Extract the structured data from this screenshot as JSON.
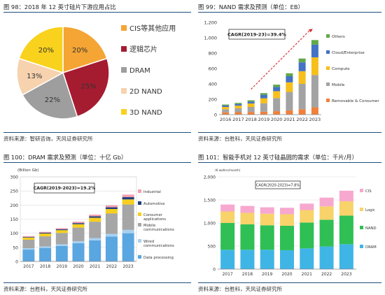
{
  "charts": [
    {
      "figure_title": "图 98：2018 年 12 英寸硅片下游应用占比",
      "source": "资料来源：智研咨询，天风证券研究所",
      "colors": [
        "#f4a534",
        "#a51c30",
        "#9e9e9e",
        "#f6d2ae",
        "#f8d21c"
      ],
      "chart_data": {
        "type": "pie",
        "categories": [
          "CIS等其他应用",
          "逻辑芯片",
          "DRAM",
          "2D NAND",
          "3D NAND"
        ],
        "values": [
          20,
          25,
          22,
          13,
          20
        ],
        "value_labels": [
          "20%",
          "25%",
          "22%",
          "13%",
          "20%"
        ],
        "legend_position": "right"
      }
    },
    {
      "figure_title": "图 99：NAND 需求及预测（单位：EB）",
      "source": "资料来源：台胜科，天风证券研究所",
      "colors": [
        "#f0803a",
        "#a3a3a3",
        "#f7bf1a",
        "#4472c4",
        "#62a84a"
      ],
      "chart_data": {
        "type": "bar",
        "stacked": true,
        "categories": [
          "2016",
          "2017",
          "2018",
          "2019",
          "2020",
          "2021",
          "2022",
          "2023"
        ],
        "ylim": [
          0,
          1200
        ],
        "yticks": [
          "0",
          "200",
          "400",
          "600",
          "800",
          "1,000",
          "1,200"
        ],
        "annotation": "CAGR(2019-23)=39.4%",
        "legend_position": "right",
        "series": [
          {
            "name": "Removable & Consumer",
            "values": [
              30,
              32,
              35,
              38,
              45,
              55,
              70,
              95
            ]
          },
          {
            "name": "Mobile",
            "values": [
              40,
              50,
              65,
              110,
              170,
              240,
              330,
              420
            ]
          },
          {
            "name": "Compute",
            "values": [
              30,
              35,
              45,
              65,
              90,
              125,
              165,
              230
            ]
          },
          {
            "name": "Cloud/Enterprise",
            "values": [
              20,
              22,
              25,
              45,
              55,
              80,
              115,
              165
            ]
          },
          {
            "name": "Others",
            "values": [
              12,
              14,
              17,
              22,
              30,
              38,
              50,
              60
            ]
          }
        ]
      }
    },
    {
      "figure_title": "图 100：DRAM 需求及预测（单位：十亿 Gb）",
      "source": "资料来源：台胜科，天风证券研究所",
      "colors": [
        "#5aa6e0",
        "#a8d1f0",
        "#a6a6a6",
        "#f7cf1e",
        "#1f3f7a",
        "#f29fb0"
      ],
      "chart_data": {
        "type": "bar",
        "stacked": true,
        "categories": [
          "2017",
          "2018",
          "2019",
          "2020",
          "2021",
          "2022",
          "2023"
        ],
        "ylabel": "(Billion Gb)",
        "ylim": [
          0,
          300
        ],
        "yticks": [
          "0",
          "50",
          "100",
          "150",
          "200",
          "250",
          "300"
        ],
        "annotation": "CAGR(2019-2023)=19.2%",
        "legend_position": "right",
        "series": [
          {
            "name": "Data processing",
            "values": [
              42,
              48,
              55,
              65,
              75,
              88,
              100
            ]
          },
          {
            "name": "Wired communications",
            "values": [
              5,
              5,
              6,
              7,
              8,
              10,
              12
            ]
          },
          {
            "name": "Mobile communications",
            "values": [
              30,
              36,
              40,
              48,
              58,
              72,
              90
            ]
          },
          {
            "name": "Consumer applications",
            "values": [
              8,
              10,
              10,
              12,
              14,
              16,
              18
            ]
          },
          {
            "name": "Automotive",
            "values": [
              2,
              3,
              3,
              4,
              5,
              6,
              8
            ]
          },
          {
            "name": "Industrial",
            "values": [
              3,
              3,
              4,
              5,
              6,
              7,
              9
            ]
          }
        ]
      }
    },
    {
      "figure_title": "图 101：智能手机对 12 英寸硅晶圆的需求（单位：千片/月）",
      "source": "资料来源：台胜科，天风证券研究所",
      "colors": [
        "#3fb5e6",
        "#2fbf55",
        "#f7d36a",
        "#f7a8cf"
      ],
      "chart_data": {
        "type": "bar",
        "stacked": true,
        "categories": [
          "2017",
          "2018",
          "2019",
          "2020",
          "2021",
          "2022",
          "2023"
        ],
        "ylabel": "(K wafers/month)",
        "ylim": [
          0,
          2000
        ],
        "yticks": [
          "0",
          "500",
          "1,000",
          "1,500",
          "2,000"
        ],
        "annotation": "CAGR(2020-2023)=7.8%",
        "legend_position": "right",
        "series": [
          {
            "name": "DRAM",
            "values": [
              420,
              420,
              420,
              410,
              450,
              490,
              540
            ]
          },
          {
            "name": "NAND",
            "values": [
              580,
              550,
              530,
              530,
              560,
              580,
              620
            ]
          },
          {
            "name": "Logic",
            "values": [
              250,
              250,
              250,
              250,
              270,
              290,
              310
            ]
          },
          {
            "name": "CIS",
            "values": [
              150,
              150,
              140,
              140,
              140,
              190,
              230
            ]
          }
        ]
      }
    }
  ]
}
